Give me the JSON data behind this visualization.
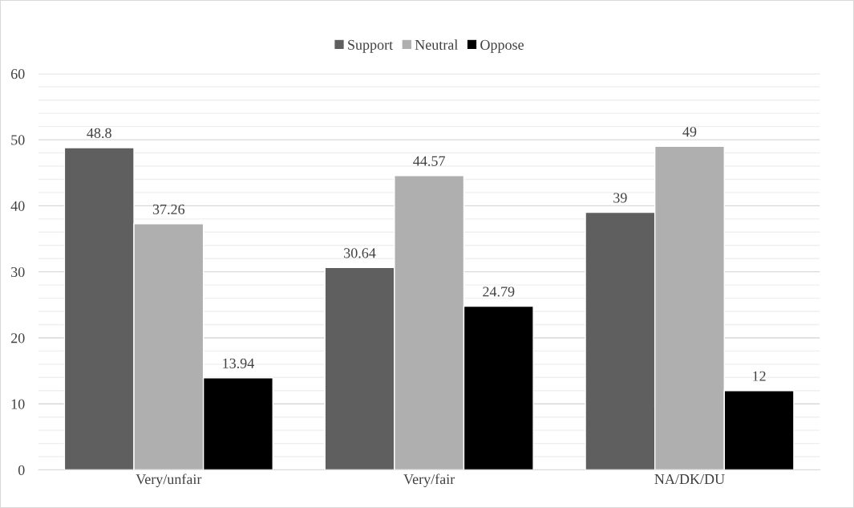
{
  "chart_data": {
    "type": "bar",
    "categories": [
      "Very/unfair",
      "Very/fair",
      "NA/DK/DU"
    ],
    "series": [
      {
        "name": "Support",
        "color": "#5f5f5f",
        "values": [
          48.8,
          30.64,
          39
        ]
      },
      {
        "name": "Neutral",
        "color": "#afafaf",
        "values": [
          37.26,
          44.57,
          49
        ]
      },
      {
        "name": "Oppose",
        "color": "#000000",
        "values": [
          13.94,
          24.79,
          12
        ]
      }
    ],
    "ylim": [
      0,
      60
    ],
    "yticks": [
      0,
      {
        "value": 2,
        "label": null
      },
      {
        "value": 4,
        "label": null
      },
      {
        "value": 6,
        "label": null
      },
      {
        "value": 8,
        "label": null
      },
      10,
      {
        "value": 12,
        "label": null
      },
      {
        "value": 14,
        "label": null
      },
      {
        "value": 16,
        "label": null
      },
      {
        "value": 18,
        "label": null
      },
      20,
      {
        "value": 22,
        "label": null
      },
      {
        "value": 24,
        "label": null
      },
      {
        "value": 26,
        "label": null
      },
      {
        "value": 28,
        "label": null
      },
      30,
      {
        "value": 32,
        "label": null
      },
      {
        "value": 34,
        "label": null
      },
      {
        "value": 36,
        "label": null
      },
      {
        "value": 38,
        "label": null
      },
      40,
      {
        "value": 42,
        "label": null
      },
      {
        "value": 44,
        "label": null
      },
      {
        "value": 46,
        "label": null
      },
      {
        "value": 48,
        "label": null
      },
      50,
      {
        "value": 52,
        "label": null
      },
      {
        "value": 54,
        "label": null
      },
      {
        "value": 56,
        "label": null
      },
      {
        "value": 58,
        "label": null
      },
      60
    ],
    "grid": "y",
    "legend": "top",
    "data_labels": true
  }
}
